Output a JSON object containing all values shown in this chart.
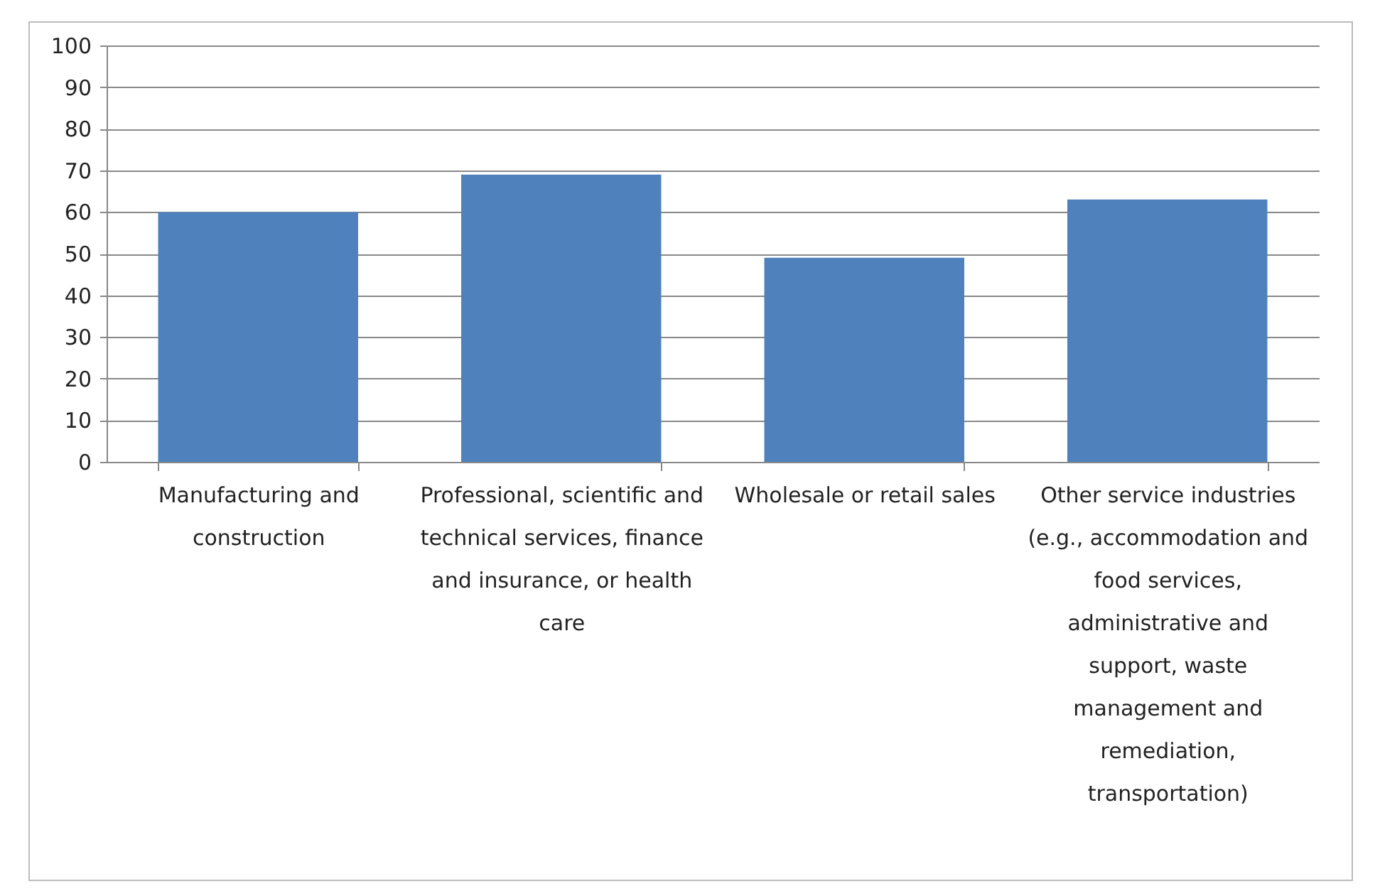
{
  "chart_data": {
    "type": "bar",
    "categories": [
      "Manufacturing and construction",
      "Professional, scientific and technical services, finance and insurance, or health care",
      "Wholesale or retail sales",
      "Other service industries (e.g., accommodation and food services, administrative and support, waste management and remediation, transportation)"
    ],
    "values": [
      60,
      69,
      49,
      63
    ],
    "color": "#4f81bd",
    "ylim": [
      0,
      100
    ],
    "yticks": [
      0,
      10,
      20,
      30,
      40,
      50,
      60,
      70,
      80,
      90,
      100
    ],
    "grid": "y"
  }
}
